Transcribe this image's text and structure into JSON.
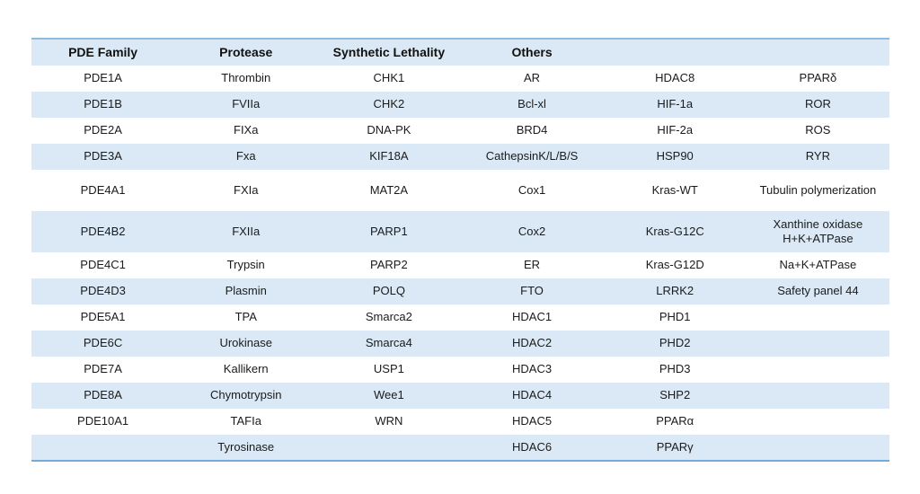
{
  "chart_data": {
    "type": "table",
    "headers": [
      "PDE Family",
      "Protease",
      "Synthetic Lethality",
      "Others",
      "",
      ""
    ],
    "rows": [
      [
        "PDE1A",
        "Thrombin",
        "CHK1",
        "AR",
        "HDAC8",
        "PPARδ"
      ],
      [
        "PDE1B",
        "FVIIa",
        "CHK2",
        "Bcl-xl",
        "HIF-1a",
        "ROR"
      ],
      [
        "PDE2A",
        "FIXa",
        "DNA-PK",
        "BRD4",
        "HIF-2a",
        "ROS"
      ],
      [
        "PDE3A",
        "Fxa",
        "KIF18A",
        "CathepsinK/L/B/S",
        "HSP90",
        "RYR"
      ],
      [
        "PDE4A1",
        "FXIa",
        "MAT2A",
        "Cox1",
        "Kras-WT",
        "Tubulin polymerization"
      ],
      [
        "PDE4B2",
        "FXIIa",
        "PARP1",
        "Cox2",
        "Kras-G12C",
        "Xanthine oxidase\nH+K+ATPase"
      ],
      [
        "PDE4C1",
        "Trypsin",
        "PARP2",
        "ER",
        "Kras-G12D",
        "Na+K+ATPase"
      ],
      [
        "PDE4D3",
        "Plasmin",
        "POLQ",
        "FTO",
        "LRRK2",
        "Safety panel 44"
      ],
      [
        "PDE5A1",
        "TPA",
        "Smarca2",
        "HDAC1",
        "PHD1",
        ""
      ],
      [
        "PDE6C",
        "Urokinase",
        "Smarca4",
        "HDAC2",
        "PHD2",
        ""
      ],
      [
        "PDE7A",
        "Kallikern",
        "USP1",
        "HDAC3",
        "PHD3",
        ""
      ],
      [
        "PDE8A",
        "Chymotrypsin",
        "Wee1",
        "HDAC4",
        "SHP2",
        ""
      ],
      [
        "PDE10A1",
        "TAFIa",
        "WRN",
        "HDAC5",
        "PPARα",
        ""
      ],
      [
        "",
        "Tyrosinase",
        "",
        "HDAC6",
        "PPARγ",
        ""
      ]
    ],
    "tall_rows": [
      4,
      5
    ],
    "title": "",
    "layout": {
      "legend": "none",
      "row_striping": "alternating white and light blue, header blue",
      "columns": 6,
      "column_alignment": "center"
    }
  },
  "colors": {
    "row_highlight_blue": "#dae9f5",
    "border_top_blue": "#8cbbdd",
    "border_bottom_blue": "#74abd9",
    "text": "#1b1b1b",
    "background": "#ffffff"
  }
}
